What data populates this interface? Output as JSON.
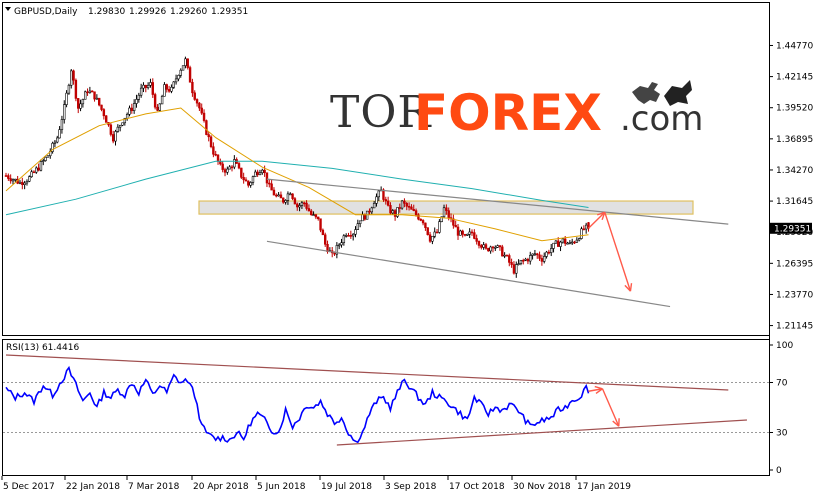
{
  "header": {
    "symbol": "GBPUSD,Daily",
    "open": "1.29830",
    "high": "1.29926",
    "low": "1.29260",
    "close": "1.29351"
  },
  "watermark": {
    "part1": "TOR",
    "part2": "FOREX",
    "part3": ".com",
    "icon": "bull-bear-icon"
  },
  "price_axis": {
    "ticks": [
      "1.44770",
      "1.42145",
      "1.39520",
      "1.36895",
      "1.34270",
      "1.31645",
      "1.29020",
      "1.26395",
      "1.23770",
      "1.21145"
    ],
    "current_price": "1.29351"
  },
  "rsi": {
    "label": "RSI(13) 61.4416",
    "ticks": [
      "100",
      "70",
      "30",
      "0"
    ]
  },
  "time_axis": {
    "labels": [
      "5 Dec 2017",
      "22 Jan 2018",
      "7 Mar 2018",
      "20 Apr 2018",
      "5 Jun 2018",
      "19 Jul 2018",
      "3 Sep 2018",
      "17 Oct 2018",
      "30 Nov 2018",
      "17 Jan 2019"
    ]
  },
  "colors": {
    "bull_candle": "#000000",
    "bear_candle": "#c00000",
    "ma_fast": "#e0a000",
    "ma_slow": "#20b0b0",
    "rsi_line": "#0000ff",
    "arrow": "#ff5a4a",
    "channel_line": "#888888",
    "rsi_trend_line": "#a05050",
    "resistance_zone": "#d8d8d8"
  },
  "chart_data": {
    "type": "candlestick",
    "symbol": "GBPUSD",
    "timeframe": "Daily",
    "last_bar": {
      "open": 1.2983,
      "high": 1.29926,
      "low": 1.2926,
      "close": 1.29351
    },
    "price_range": [
      1.2035,
      1.4675
    ],
    "price_path": [
      [
        0,
        1.338
      ],
      [
        6,
        1.332
      ],
      [
        10,
        1.336
      ],
      [
        14,
        1.345
      ],
      [
        18,
        1.355
      ],
      [
        22,
        1.37
      ],
      [
        25,
        1.395
      ],
      [
        28,
        1.428
      ],
      [
        31,
        1.395
      ],
      [
        35,
        1.41
      ],
      [
        38,
        1.405
      ],
      [
        42,
        1.39
      ],
      [
        46,
        1.37
      ],
      [
        50,
        1.385
      ],
      [
        54,
        1.395
      ],
      [
        58,
        1.41
      ],
      [
        62,
        1.415
      ],
      [
        65,
        1.39
      ],
      [
        68,
        1.412
      ],
      [
        71,
        1.41
      ],
      [
        74,
        1.425
      ],
      [
        77,
        1.435
      ],
      [
        80,
        1.41
      ],
      [
        83,
        1.395
      ],
      [
        86,
        1.375
      ],
      [
        89,
        1.358
      ],
      [
        92,
        1.345
      ],
      [
        95,
        1.342
      ],
      [
        98,
        1.35
      ],
      [
        101,
        1.338
      ],
      [
        104,
        1.33
      ],
      [
        107,
        1.34
      ],
      [
        110,
        1.345
      ],
      [
        113,
        1.328
      ],
      [
        116,
        1.32
      ],
      [
        119,
        1.317
      ],
      [
        122,
        1.325
      ],
      [
        125,
        1.312
      ],
      [
        128,
        1.315
      ],
      [
        131,
        1.305
      ],
      [
        134,
        1.3
      ],
      [
        137,
        1.28
      ],
      [
        140,
        1.27
      ],
      [
        143,
        1.28
      ],
      [
        146,
        1.29
      ],
      [
        149,
        1.29
      ],
      [
        152,
        1.302
      ],
      [
        155,
        1.305
      ],
      [
        158,
        1.317
      ],
      [
        161,
        1.325
      ],
      [
        164,
        1.31
      ],
      [
        167,
        1.305
      ],
      [
        170,
        1.315
      ],
      [
        173,
        1.31
      ],
      [
        176,
        1.305
      ],
      [
        179,
        1.3
      ],
      [
        182,
        1.285
      ],
      [
        185,
        1.29
      ],
      [
        188,
        1.31
      ],
      [
        191,
        1.3
      ],
      [
        194,
        1.29
      ],
      [
        197,
        1.285
      ],
      [
        200,
        1.29
      ],
      [
        203,
        1.282
      ],
      [
        206,
        1.275
      ],
      [
        209,
        1.28
      ],
      [
        212,
        1.275
      ],
      [
        215,
        1.268
      ],
      [
        218,
        1.258
      ],
      [
        221,
        1.265
      ],
      [
        224,
        1.268
      ],
      [
        227,
        1.272
      ],
      [
        230,
        1.268
      ],
      [
        233,
        1.275
      ],
      [
        236,
        1.28
      ],
      [
        239,
        1.283
      ],
      [
        242,
        1.28
      ],
      [
        245,
        1.285
      ],
      [
        248,
        1.293
      ],
      [
        250,
        1.2935
      ]
    ],
    "ma_fast": [
      [
        0,
        1.325
      ],
      [
        20,
        1.36
      ],
      [
        40,
        1.38
      ],
      [
        60,
        1.39
      ],
      [
        75,
        1.395
      ],
      [
        90,
        1.37
      ],
      [
        110,
        1.345
      ],
      [
        130,
        1.328
      ],
      [
        150,
        1.305
      ],
      [
        170,
        1.305
      ],
      [
        190,
        1.302
      ],
      [
        210,
        1.293
      ],
      [
        230,
        1.283
      ],
      [
        250,
        1.288
      ]
    ],
    "ma_slow": [
      [
        0,
        1.305
      ],
      [
        30,
        1.318
      ],
      [
        60,
        1.335
      ],
      [
        90,
        1.35
      ],
      [
        110,
        1.35
      ],
      [
        140,
        1.344
      ],
      [
        170,
        1.335
      ],
      [
        200,
        1.327
      ],
      [
        230,
        1.317
      ],
      [
        250,
        1.311
      ]
    ],
    "resistance_zone": [
      1.3055,
      1.3165
    ],
    "upper_channel": [
      [
        112,
        1.335
      ],
      [
        310,
        1.297
      ]
    ],
    "lower_channel": [
      [
        112,
        1.2825
      ],
      [
        285,
        1.2275
      ]
    ],
    "arrows": [
      {
        "from": [
          250,
          1.2935
        ],
        "to": [
          257,
          1.307
        ]
      },
      {
        "from": [
          257,
          1.307
        ],
        "to": [
          268,
          1.2405
        ]
      }
    ],
    "rsi_range": [
      0,
      100
    ],
    "rsi_levels": [
      70,
      30
    ],
    "rsi_path": [
      [
        0,
        65
      ],
      [
        4,
        58
      ],
      [
        8,
        62
      ],
      [
        12,
        55
      ],
      [
        16,
        68
      ],
      [
        20,
        60
      ],
      [
        24,
        72
      ],
      [
        27,
        80
      ],
      [
        30,
        68
      ],
      [
        33,
        55
      ],
      [
        36,
        62
      ],
      [
        39,
        50
      ],
      [
        42,
        62
      ],
      [
        45,
        58
      ],
      [
        48,
        64
      ],
      [
        51,
        60
      ],
      [
        54,
        70
      ],
      [
        57,
        62
      ],
      [
        60,
        72
      ],
      [
        63,
        60
      ],
      [
        66,
        68
      ],
      [
        69,
        62
      ],
      [
        72,
        75
      ],
      [
        75,
        70
      ],
      [
        78,
        72
      ],
      [
        81,
        60
      ],
      [
        84,
        35
      ],
      [
        87,
        28
      ],
      [
        90,
        25
      ],
      [
        93,
        26
      ],
      [
        96,
        24
      ],
      [
        99,
        30
      ],
      [
        102,
        25
      ],
      [
        105,
        38
      ],
      [
        108,
        45
      ],
      [
        111,
        40
      ],
      [
        114,
        32
      ],
      [
        117,
        30
      ],
      [
        120,
        48
      ],
      [
        123,
        35
      ],
      [
        126,
        42
      ],
      [
        129,
        52
      ],
      [
        132,
        50
      ],
      [
        135,
        55
      ],
      [
        138,
        45
      ],
      [
        141,
        38
      ],
      [
        144,
        42
      ],
      [
        147,
        30
      ],
      [
        150,
        22
      ],
      [
        153,
        30
      ],
      [
        156,
        45
      ],
      [
        159,
        55
      ],
      [
        162,
        58
      ],
      [
        165,
        50
      ],
      [
        168,
        62
      ],
      [
        171,
        72
      ],
      [
        174,
        65
      ],
      [
        177,
        58
      ],
      [
        180,
        52
      ],
      [
        183,
        62
      ],
      [
        186,
        58
      ],
      [
        189,
        55
      ],
      [
        192,
        50
      ],
      [
        195,
        45
      ],
      [
        198,
        40
      ],
      [
        201,
        58
      ],
      [
        204,
        52
      ],
      [
        207,
        45
      ],
      [
        210,
        50
      ],
      [
        213,
        48
      ],
      [
        216,
        52
      ],
      [
        219,
        50
      ],
      [
        222,
        42
      ],
      [
        225,
        35
      ],
      [
        228,
        38
      ],
      [
        231,
        40
      ],
      [
        234,
        42
      ],
      [
        237,
        48
      ],
      [
        240,
        50
      ],
      [
        243,
        56
      ],
      [
        246,
        58
      ],
      [
        249,
        66
      ],
      [
        250,
        61.4
      ]
    ],
    "rsi_upper_trend": [
      [
        0,
        92
      ],
      [
        310,
        64
      ]
    ],
    "rsi_lower_trend": [
      [
        142,
        20
      ],
      [
        318,
        40
      ]
    ],
    "rsi_arrows": [
      {
        "from": [
          250,
          63
        ],
        "to": [
          256,
          65
        ]
      },
      {
        "from": [
          256,
          65
        ],
        "to": [
          263,
          35
        ]
      }
    ]
  }
}
